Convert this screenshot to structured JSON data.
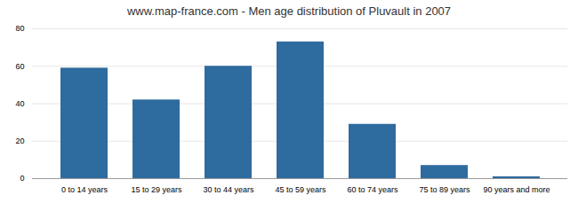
{
  "chart_data": {
    "type": "bar",
    "title": "www.map-france.com - Men age distribution of Pluvault in 2007",
    "categories": [
      "0 to 14 years",
      "15 to 29 years",
      "30 to 44 years",
      "45 to 59 years",
      "60 to 74 years",
      "75 to 89 years",
      "90 years and more"
    ],
    "values": [
      59,
      42,
      60,
      73,
      29,
      7,
      1
    ],
    "color": "#2e6b9e",
    "ylim": [
      0,
      80
    ],
    "yticks": [
      0,
      20,
      40,
      60,
      80
    ],
    "grid": true
  }
}
